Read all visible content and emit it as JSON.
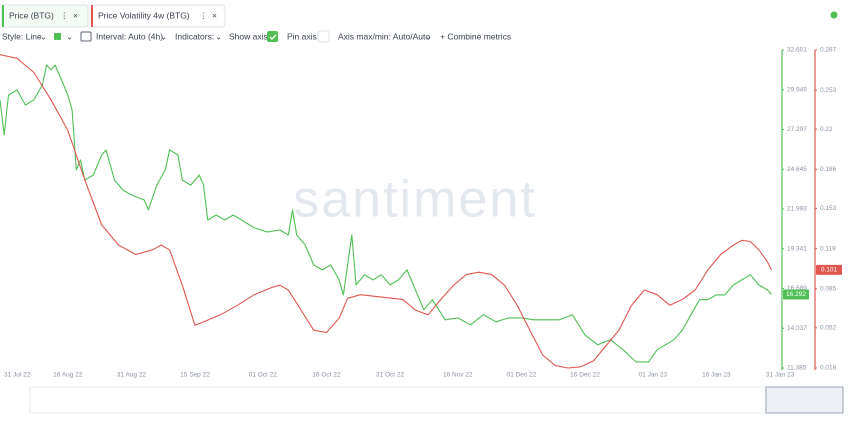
{
  "header": {
    "toolbar": {
      "style": "Style: Line",
      "interval": "Interval: Auto (4h)",
      "indicators": "Indicators:",
      "show_axis": "Show axis",
      "pin_axis": "Pin axis",
      "axis_minmax": "Axis max/min: Auto/Auto",
      "combine": "+ Combine metrics"
    }
  },
  "chart_data": {
    "type": "line",
    "watermark": "santiment",
    "xlim": [
      "31 Jul 22",
      "31 Jan 23"
    ],
    "xticks": [
      "31 Jul 22",
      "16 Aug 22",
      "31 Aug 22",
      "15 Sep 22",
      "01 Oct 22",
      "16 Oct 22",
      "31 Oct 22",
      "16 Nov 22",
      "01 Dec 22",
      "16 Dec 22",
      "01 Jan 23",
      "16 Jan 23",
      "31 Jan 23"
    ],
    "ylim": [
      11.385,
      32.601
    ],
    "yticks": [
      11.385,
      14.037,
      16.689,
      19.341,
      21.993,
      24.645,
      27.297,
      29.949,
      32.601
    ],
    "y2lim": [
      0.018,
      0.287
    ],
    "y2ticks": [
      0.018,
      0.052,
      0.085,
      0.119,
      0.153,
      0.186,
      0.22,
      0.253,
      0.287
    ],
    "grid": false,
    "series": [
      {
        "name": "Price (BTG)",
        "color": "#4fbf54",
        "axis": "y",
        "x": [
          "31 Jul 22",
          "01 Aug 22",
          "02 Aug 22",
          "04 Aug 22",
          "06 Aug 22",
          "08 Aug 22",
          "10 Aug 22",
          "11 Aug 22",
          "12 Aug 22",
          "13 Aug 22",
          "15 Aug 22",
          "16 Aug 22",
          "17 Aug 22",
          "18 Aug 22",
          "19 Aug 22",
          "20 Aug 22",
          "22 Aug 22",
          "24 Aug 22",
          "25 Aug 22",
          "27 Aug 22",
          "29 Aug 22",
          "31 Aug 22",
          "03 Sep 22",
          "04 Sep 22",
          "06 Sep 22",
          "08 Sep 22",
          "09 Sep 22",
          "11 Sep 22",
          "12 Sep 22",
          "14 Sep 22",
          "16 Sep 22",
          "17 Sep 22",
          "18 Sep 22",
          "20 Sep 22",
          "22 Sep 22",
          "24 Sep 22",
          "26 Sep 22",
          "29 Sep 22",
          "02 Oct 22",
          "05 Oct 22",
          "07 Oct 22",
          "08 Oct 22",
          "09 Oct 22",
          "11 Oct 22",
          "13 Oct 22",
          "15 Oct 22",
          "17 Oct 22",
          "19 Oct 22",
          "20 Oct 22",
          "22 Oct 22",
          "23 Oct 22",
          "25 Oct 22",
          "27 Oct 22",
          "29 Oct 22",
          "31 Oct 22",
          "02 Nov 22",
          "04 Nov 22",
          "06 Nov 22",
          "08 Nov 22",
          "10 Nov 22",
          "13 Nov 22",
          "16 Nov 22",
          "19 Nov 22",
          "22 Nov 22",
          "25 Nov 22",
          "28 Nov 22",
          "01 Dec 22",
          "04 Dec 22",
          "07 Dec 22",
          "10 Dec 22",
          "13 Dec 22",
          "16 Dec 22",
          "19 Dec 22",
          "22 Dec 22",
          "25 Dec 22",
          "28 Dec 22",
          "31 Dec 22",
          "02 Jan 23",
          "04 Jan 23",
          "06 Jan 23",
          "08 Jan 23",
          "10 Jan 23",
          "12 Jan 23",
          "14 Jan 23",
          "16 Jan 23",
          "18 Jan 23",
          "20 Jan 23",
          "22 Jan 23",
          "24 Jan 23",
          "26 Jan 23",
          "28 Jan 23",
          "29 Jan 23"
        ],
        "values": [
          29.27,
          26.93,
          29.6,
          29.93,
          28.93,
          29.27,
          30.27,
          31.6,
          31.27,
          31.6,
          30.27,
          29.6,
          28.6,
          24.6,
          25.26,
          23.93,
          24.26,
          25.6,
          25.93,
          23.93,
          23.26,
          22.93,
          22.6,
          21.93,
          23.59,
          24.6,
          25.93,
          25.6,
          23.93,
          23.59,
          24.26,
          23.59,
          21.26,
          21.59,
          21.26,
          21.59,
          21.26,
          20.73,
          20.46,
          20.6,
          20.26,
          21.93,
          20.26,
          19.59,
          18.26,
          17.93,
          18.26,
          17.26,
          16.26,
          20.26,
          16.93,
          17.6,
          17.26,
          17.6,
          16.93,
          17.26,
          17.93,
          16.6,
          15.27,
          15.94,
          14.6,
          14.73,
          14.27,
          14.94,
          14.47,
          14.73,
          14.73,
          14.6,
          14.6,
          14.6,
          14.94,
          13.59,
          12.93,
          13.27,
          12.6,
          11.79,
          11.79,
          12.6,
          12.93,
          13.27,
          13.93,
          14.94,
          15.94,
          15.94,
          16.26,
          16.26,
          16.93,
          17.26,
          17.6,
          16.93,
          16.6,
          16.292
        ]
      },
      {
        "name": "Price Volatility 4w (BTG)",
        "color": "#e0574f",
        "axis": "y2",
        "x": [
          "31 Jul 22",
          "04 Aug 22",
          "08 Aug 22",
          "12 Aug 22",
          "16 Aug 22",
          "20 Aug 22",
          "24 Aug 22",
          "28 Aug 22",
          "01 Sep 22",
          "05 Sep 22",
          "07 Sep 22",
          "09 Sep 22",
          "12 Sep 22",
          "15 Sep 22",
          "17 Sep 22",
          "21 Sep 22",
          "25 Sep 22",
          "29 Sep 22",
          "03 Oct 22",
          "05 Oct 22",
          "07 Oct 22",
          "10 Oct 22",
          "13 Oct 22",
          "16 Oct 22",
          "19 Oct 22",
          "21 Oct 22",
          "24 Oct 22",
          "29 Oct 22",
          "03 Nov 22",
          "06 Nov 22",
          "09 Nov 22",
          "12 Nov 22",
          "15 Nov 22",
          "18 Nov 22",
          "21 Nov 22",
          "24 Nov 22",
          "27 Nov 22",
          "30 Nov 22",
          "03 Dec 22",
          "06 Dec 22",
          "09 Dec 22",
          "12 Dec 22",
          "15 Dec 22",
          "18 Dec 22",
          "21 Dec 22",
          "24 Dec 22",
          "27 Dec 22",
          "30 Dec 22",
          "02 Jan 23",
          "05 Jan 23",
          "08 Jan 23",
          "11 Jan 23",
          "14 Jan 23",
          "17 Jan 23",
          "20 Jan 23",
          "22 Jan 23",
          "24 Jan 23",
          "26 Jan 23",
          "28 Jan 23",
          "29 Jan 23"
        ],
        "values": [
          0.283,
          0.28,
          0.268,
          0.245,
          0.219,
          0.177,
          0.139,
          0.122,
          0.114,
          0.118,
          0.122,
          0.118,
          0.088,
          0.054,
          0.057,
          0.063,
          0.071,
          0.08,
          0.086,
          0.088,
          0.084,
          0.067,
          0.05,
          0.048,
          0.06,
          0.077,
          0.08,
          0.078,
          0.076,
          0.067,
          0.063,
          0.076,
          0.088,
          0.097,
          0.099,
          0.097,
          0.088,
          0.071,
          0.05,
          0.029,
          0.02,
          0.018,
          0.019,
          0.024,
          0.037,
          0.05,
          0.071,
          0.084,
          0.08,
          0.071,
          0.076,
          0.084,
          0.101,
          0.114,
          0.122,
          0.126,
          0.125,
          0.118,
          0.108,
          0.101
        ]
      }
    ]
  }
}
